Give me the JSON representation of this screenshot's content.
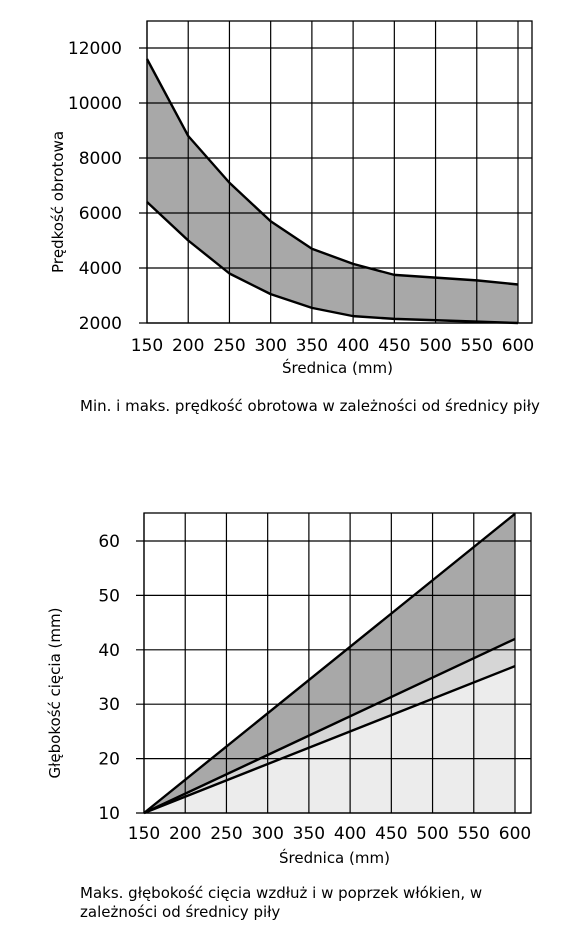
{
  "chart_data": [
    {
      "type": "area",
      "xlabel": "Średnica (mm)",
      "ylabel": "Prędkość obrotowa",
      "x": [
        150,
        200,
        250,
        300,
        350,
        400,
        450,
        500,
        550,
        600
      ],
      "xlim": [
        150,
        600
      ],
      "ylim": [
        2000,
        12000
      ],
      "xticks": [
        "150",
        "200",
        "250",
        "300",
        "350",
        "400",
        "450",
        "500",
        "550",
        "600"
      ],
      "yticks": [
        "2000",
        "4000",
        "6000",
        "8000",
        "10000",
        "12000"
      ],
      "grid": true,
      "series": [
        {
          "values": [
            6400,
            5000,
            3800,
            3050,
            2550,
            2250,
            2150,
            2100,
            2050,
            2000
          ]
        },
        {
          "values": [
            11600,
            8800,
            7100,
            5700,
            4700,
            4150,
            3750,
            3650,
            3550,
            3400
          ]
        }
      ],
      "fill": "#a8a8a8",
      "caption": "Min. i maks. prędkość obrotowa w zależności od średnicy piły"
    },
    {
      "type": "area",
      "xlabel": "Średnica (mm)",
      "ylabel": "Głębokość cięcia (mm)",
      "x": [
        150,
        600
      ],
      "xlim": [
        150,
        600
      ],
      "ylim": [
        10,
        65
      ],
      "xticks": [
        "150",
        "200",
        "250",
        "300",
        "350",
        "400",
        "450",
        "500",
        "550",
        "600"
      ],
      "yticks": [
        "10",
        "20",
        "30",
        "40",
        "50",
        "60"
      ],
      "grid": true,
      "series": [
        {
          "values": [
            10,
            37
          ]
        },
        {
          "values": [
            10,
            42
          ]
        },
        {
          "values": [
            10,
            65
          ]
        }
      ],
      "fills": [
        "#ececec",
        "#d6d6d6",
        "#a8a8a8"
      ],
      "caption": "Maks. głębokość cięcia wzdłuż i w poprzek włókien, w zależności od średnicy piły"
    }
  ]
}
